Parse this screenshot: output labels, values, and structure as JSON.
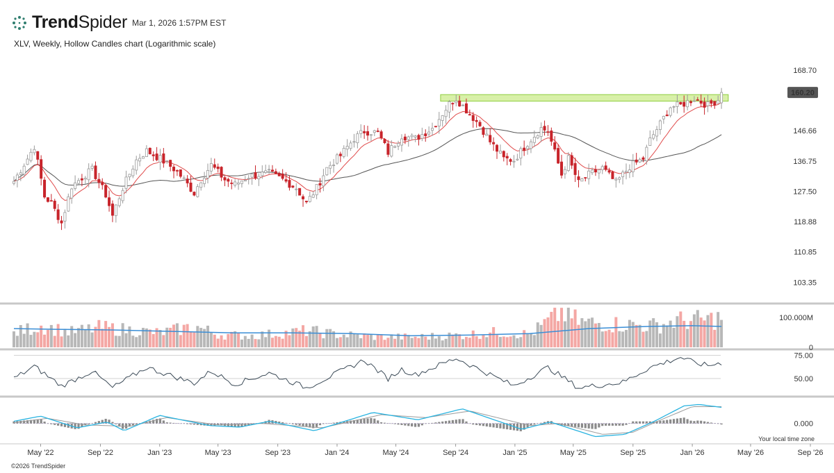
{
  "header": {
    "brand_bold": "Trend",
    "brand_light": "Spider",
    "timestamp": "Mar 1, 2026 1:57PM EST",
    "subtitle": "XLV, Weekly, Hollow Candles chart (Logarithmic scale)",
    "footer": "©2026 TrendSpider"
  },
  "colors": {
    "up": "#9a9a9a",
    "down": "#c8242b",
    "ema_fast": "#e04a4a",
    "sma_slow": "#555555",
    "volume_up": "#b8b8b8",
    "volume_down": "#f4a7a4",
    "volume_ma": "#3a8ed6",
    "rsi": "#3b4a57",
    "macd": "#29b3e0",
    "macd_signal": "#9a9a9a",
    "resistance_zone": "#d8f0a8",
    "resistance_border": "#8fcf3f"
  },
  "chart_data": {
    "type": "candlestick",
    "scale": "log",
    "y_ticks": [
      "168.70",
      "146.66",
      "136.75",
      "127.50",
      "118.88",
      "110.85",
      "103.35"
    ],
    "y_tick_values": [
      168.7,
      146.66,
      136.75,
      127.5,
      118.88,
      110.85,
      103.35
    ],
    "ylim": [
      99.5,
      175
    ],
    "last_price": "160.20",
    "last_price_value": 160.2,
    "x_start": "2022-03-07",
    "x_end": "2026-09-21",
    "x_ticks": [
      {
        "date": "2022-05-01",
        "label": "May '22"
      },
      {
        "date": "2022-09-01",
        "label": "Sep '22"
      },
      {
        "date": "2023-01-01",
        "label": "Jan '23"
      },
      {
        "date": "2023-05-01",
        "label": "May '23"
      },
      {
        "date": "2023-09-01",
        "label": "Sep '23"
      },
      {
        "date": "2024-01-01",
        "label": "Jan '24"
      },
      {
        "date": "2024-05-01",
        "label": "May '24"
      },
      {
        "date": "2024-09-01",
        "label": "Sep '24"
      },
      {
        "date": "2025-01-01",
        "label": "Jan '25"
      },
      {
        "date": "2025-05-01",
        "label": "May '25"
      },
      {
        "date": "2025-09-01",
        "label": "Sep '25"
      },
      {
        "date": "2026-01-01",
        "label": "Jan '26"
      },
      {
        "date": "2026-05-01",
        "label": "May '26"
      },
      {
        "date": "2026-09-01",
        "label": "Sep '26"
      }
    ],
    "resistance_zone": {
      "from": "2024-08-01",
      "to": "2026-03-16",
      "low": 157.0,
      "high": 159.4
    },
    "closes": [
      {
        "date": "2022-03-07",
        "close": 130.5
      },
      {
        "date": "2022-04-04",
        "close": 137.5
      },
      {
        "date": "2022-04-18",
        "close": 141.5
      },
      {
        "date": "2022-05-09",
        "close": 126.0
      },
      {
        "date": "2022-05-23",
        "close": 124.0
      },
      {
        "date": "2022-06-13",
        "close": 118.5
      },
      {
        "date": "2022-07-04",
        "close": 129.0
      },
      {
        "date": "2022-08-01",
        "close": 132.5
      },
      {
        "date": "2022-08-15",
        "close": 134.0
      },
      {
        "date": "2022-09-12",
        "close": 126.5
      },
      {
        "date": "2022-09-26",
        "close": 120.5
      },
      {
        "date": "2022-10-17",
        "close": 128.5
      },
      {
        "date": "2022-11-14",
        "close": 137.0
      },
      {
        "date": "2022-12-05",
        "close": 140.0
      },
      {
        "date": "2023-01-02",
        "close": 137.5
      },
      {
        "date": "2023-02-06",
        "close": 133.5
      },
      {
        "date": "2023-03-13",
        "close": 127.0
      },
      {
        "date": "2023-03-27",
        "close": 131.0
      },
      {
        "date": "2023-04-17",
        "close": 135.5
      },
      {
        "date": "2023-05-15",
        "close": 131.0
      },
      {
        "date": "2023-06-05",
        "close": 129.5
      },
      {
        "date": "2023-07-03",
        "close": 132.0
      },
      {
        "date": "2023-08-14",
        "close": 133.0
      },
      {
        "date": "2023-09-11",
        "close": 131.0
      },
      {
        "date": "2023-10-09",
        "close": 128.5
      },
      {
        "date": "2023-10-30",
        "close": 124.0
      },
      {
        "date": "2023-11-20",
        "close": 128.5
      },
      {
        "date": "2023-12-11",
        "close": 134.5
      },
      {
        "date": "2024-01-08",
        "close": 138.5
      },
      {
        "date": "2024-02-05",
        "close": 144.0
      },
      {
        "date": "2024-02-26",
        "close": 146.5
      },
      {
        "date": "2024-03-25",
        "close": 146.0
      },
      {
        "date": "2024-04-15",
        "close": 139.5
      },
      {
        "date": "2024-05-13",
        "close": 145.0
      },
      {
        "date": "2024-06-10",
        "close": 144.0
      },
      {
        "date": "2024-07-15",
        "close": 147.5
      },
      {
        "date": "2024-08-19",
        "close": 156.0
      },
      {
        "date": "2024-09-02",
        "close": 158.0
      },
      {
        "date": "2024-09-30",
        "close": 152.5
      },
      {
        "date": "2024-10-21",
        "close": 148.5
      },
      {
        "date": "2024-11-11",
        "close": 143.0
      },
      {
        "date": "2024-12-09",
        "close": 137.5
      },
      {
        "date": "2024-12-30",
        "close": 137.0
      },
      {
        "date": "2025-01-27",
        "close": 142.5
      },
      {
        "date": "2025-02-24",
        "close": 147.5
      },
      {
        "date": "2025-03-10",
        "close": 146.5
      },
      {
        "date": "2025-04-07",
        "close": 132.5
      },
      {
        "date": "2025-04-21",
        "close": 137.5
      },
      {
        "date": "2025-05-12",
        "close": 130.0
      },
      {
        "date": "2025-06-02",
        "close": 132.5
      },
      {
        "date": "2025-06-30",
        "close": 134.5
      },
      {
        "date": "2025-07-28",
        "close": 130.0
      },
      {
        "date": "2025-08-11",
        "close": 132.5
      },
      {
        "date": "2025-08-25",
        "close": 135.0
      },
      {
        "date": "2025-09-22",
        "close": 137.5
      },
      {
        "date": "2025-10-06",
        "close": 143.5
      },
      {
        "date": "2025-10-27",
        "close": 149.0
      },
      {
        "date": "2025-11-17",
        "close": 155.0
      },
      {
        "date": "2025-12-08",
        "close": 155.5
      },
      {
        "date": "2026-01-05",
        "close": 158.0
      },
      {
        "date": "2026-02-02",
        "close": 155.5
      },
      {
        "date": "2026-02-23",
        "close": 157.5
      },
      {
        "date": "2026-03-02",
        "close": 160.2
      }
    ],
    "volume": {
      "axis_label": "100.000M",
      "axis_zero": "0",
      "ylim": [
        0,
        112
      ],
      "series": [
        {
          "date": "2022-03-07",
          "value": 40
        },
        {
          "date": "2022-05-01",
          "value": 60
        },
        {
          "date": "2022-07-01",
          "value": 42
        },
        {
          "date": "2022-09-01",
          "value": 55
        },
        {
          "date": "2022-11-01",
          "value": 48
        },
        {
          "date": "2023-01-01",
          "value": 40
        },
        {
          "date": "2023-03-15",
          "value": 58
        },
        {
          "date": "2023-05-01",
          "value": 36
        },
        {
          "date": "2023-07-01",
          "value": 32
        },
        {
          "date": "2023-09-01",
          "value": 38
        },
        {
          "date": "2023-11-01",
          "value": 46
        },
        {
          "date": "2024-01-01",
          "value": 36
        },
        {
          "date": "2024-03-15",
          "value": 30
        },
        {
          "date": "2024-06-01",
          "value": 28
        },
        {
          "date": "2024-09-01",
          "value": 33
        },
        {
          "date": "2024-12-01",
          "value": 42
        },
        {
          "date": "2025-02-01",
          "value": 36
        },
        {
          "date": "2025-04-07",
          "value": 98
        },
        {
          "date": "2025-05-15",
          "value": 70
        },
        {
          "date": "2025-08-01",
          "value": 64
        },
        {
          "date": "2025-10-15",
          "value": 60
        },
        {
          "date": "2025-12-01",
          "value": 74
        },
        {
          "date": "2026-02-01",
          "value": 76
        },
        {
          "date": "2026-03-02",
          "value": 82
        }
      ],
      "ma": [
        {
          "date": "2022-03-07",
          "value": 52
        },
        {
          "date": "2022-06-01",
          "value": 50
        },
        {
          "date": "2022-10-01",
          "value": 48
        },
        {
          "date": "2023-02-01",
          "value": 44
        },
        {
          "date": "2023-06-01",
          "value": 40
        },
        {
          "date": "2023-10-01",
          "value": 40
        },
        {
          "date": "2024-02-01",
          "value": 38
        },
        {
          "date": "2024-06-01",
          "value": 32
        },
        {
          "date": "2024-10-01",
          "value": 34
        },
        {
          "date": "2025-02-01",
          "value": 38
        },
        {
          "date": "2025-06-01",
          "value": 52
        },
        {
          "date": "2025-10-01",
          "value": 58
        },
        {
          "date": "2026-01-01",
          "value": 60
        },
        {
          "date": "2026-03-02",
          "value": 58
        }
      ]
    },
    "rsi": {
      "ticks": [
        "75.00",
        "50.00"
      ],
      "tick_values": [
        75,
        50
      ],
      "ylim": [
        35,
        80
      ],
      "series": [
        {
          "date": "2022-03-07",
          "value": 50
        },
        {
          "date": "2022-04-18",
          "value": 63
        },
        {
          "date": "2022-06-13",
          "value": 42
        },
        {
          "date": "2022-08-15",
          "value": 58
        },
        {
          "date": "2022-09-26",
          "value": 40
        },
        {
          "date": "2022-12-05",
          "value": 62
        },
        {
          "date": "2023-03-13",
          "value": 45
        },
        {
          "date": "2023-04-17",
          "value": 58
        },
        {
          "date": "2023-06-05",
          "value": 44
        },
        {
          "date": "2023-08-14",
          "value": 56
        },
        {
          "date": "2023-10-30",
          "value": 40
        },
        {
          "date": "2024-02-26",
          "value": 70
        },
        {
          "date": "2024-04-15",
          "value": 50
        },
        {
          "date": "2024-05-13",
          "value": 60
        },
        {
          "date": "2024-06-10",
          "value": 54
        },
        {
          "date": "2024-09-02",
          "value": 72
        },
        {
          "date": "2024-12-30",
          "value": 42
        },
        {
          "date": "2025-03-10",
          "value": 62
        },
        {
          "date": "2025-05-12",
          "value": 40
        },
        {
          "date": "2025-08-11",
          "value": 46
        },
        {
          "date": "2025-10-06",
          "value": 62
        },
        {
          "date": "2025-12-08",
          "value": 73
        },
        {
          "date": "2026-01-05",
          "value": 67
        },
        {
          "date": "2026-02-02",
          "value": 64
        },
        {
          "date": "2026-03-02",
          "value": 67
        }
      ]
    },
    "macd": {
      "ticks": [
        "0.000"
      ],
      "tick_values": [
        0
      ],
      "ylim": [
        -2.6,
        3.2
      ],
      "macd": [
        {
          "date": "2022-03-07",
          "value": 0.3
        },
        {
          "date": "2022-05-01",
          "value": 1.0
        },
        {
          "date": "2022-07-15",
          "value": -0.6
        },
        {
          "date": "2022-09-15",
          "value": 0.2
        },
        {
          "date": "2022-10-20",
          "value": -1.0
        },
        {
          "date": "2023-01-01",
          "value": 1.1
        },
        {
          "date": "2023-04-15",
          "value": -0.3
        },
        {
          "date": "2023-06-15",
          "value": -0.5
        },
        {
          "date": "2023-08-15",
          "value": 0.3
        },
        {
          "date": "2023-11-15",
          "value": -1.0
        },
        {
          "date": "2024-03-15",
          "value": 1.5
        },
        {
          "date": "2024-06-15",
          "value": 0.5
        },
        {
          "date": "2024-09-15",
          "value": 2.0
        },
        {
          "date": "2025-01-15",
          "value": -0.8
        },
        {
          "date": "2025-03-15",
          "value": 0.2
        },
        {
          "date": "2025-06-15",
          "value": -1.8
        },
        {
          "date": "2025-08-15",
          "value": -1.5
        },
        {
          "date": "2025-10-15",
          "value": 0.3
        },
        {
          "date": "2025-12-15",
          "value": 2.4
        },
        {
          "date": "2026-01-15",
          "value": 2.6
        },
        {
          "date": "2026-03-02",
          "value": 2.2
        }
      ],
      "signal": [
        {
          "date": "2022-03-07",
          "value": 0.1
        },
        {
          "date": "2022-05-15",
          "value": 0.7
        },
        {
          "date": "2022-08-01",
          "value": -0.2
        },
        {
          "date": "2022-11-01",
          "value": -0.4
        },
        {
          "date": "2023-01-15",
          "value": 0.8
        },
        {
          "date": "2023-05-01",
          "value": -0.2
        },
        {
          "date": "2023-08-01",
          "value": 0.0
        },
        {
          "date": "2023-12-01",
          "value": -0.6
        },
        {
          "date": "2024-04-01",
          "value": 1.2
        },
        {
          "date": "2024-07-01",
          "value": 0.8
        },
        {
          "date": "2024-10-01",
          "value": 1.7
        },
        {
          "date": "2025-02-01",
          "value": -0.3
        },
        {
          "date": "2025-04-01",
          "value": 0.0
        },
        {
          "date": "2025-07-01",
          "value": -1.5
        },
        {
          "date": "2025-09-01",
          "value": -1.2
        },
        {
          "date": "2025-11-01",
          "value": 0.6
        },
        {
          "date": "2026-01-01",
          "value": 2.3
        },
        {
          "date": "2026-03-02",
          "value": 2.3
        }
      ]
    },
    "time_zone_note": "Your local time zone"
  }
}
